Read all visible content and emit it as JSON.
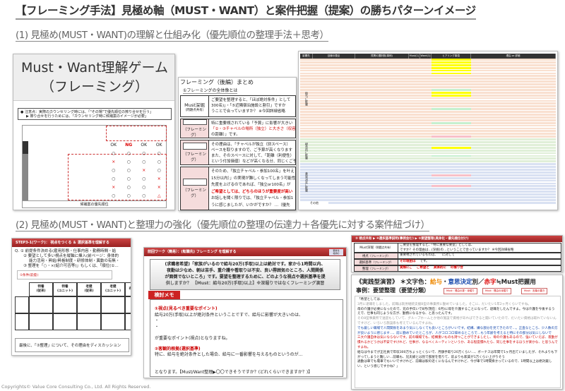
{
  "title": "【フレーミング手法】見極め軸（MUST・WANT）と案件把握（提案）の勝ちパターンイメージ",
  "section1": {
    "heading": "(1) 見極め(MUST・WANT)の理解と仕組み化（優先順位の整理手法＋思考）",
    "game_slide": {
      "title_line1": "Must・Want理解ゲーム",
      "title_line2": "（フレーミング）",
      "note_line1": "● 注意点：実際のカウンセリング時には、「\"その場\"で優先順位の擦り合せを行う」",
      "note_line2": "▶ 擦り合せを行うためには、「カウンセリング時に候補案のイメージが必要」",
      "marks": [
        "OK",
        "NG",
        "OK",
        "OK",
        "○",
        "×",
        "○",
        "×",
        "○",
        "△"
      ],
      "footer": "候補案の優先順位"
    },
    "framing_slide": {
      "title": "フレーミング（後編）まとめ",
      "subtitle": "①フレーミングの全体像とは",
      "rows": [
        {
          "label": "Must深堀",
          "sublabel": "（問題点共有）",
          "lines": [
            "ご要望を整理すると、「ほぼ絶対条件」として",
            "300名)」・「⑤近隣宿泊施設と割引」ですか",
            "うことで合っていますか？ ※今回詳細省略"
          ]
        },
        {
          "label": "",
          "sublabel": "（フレーミング）",
          "lines": [
            "特に重要視されている「予算」に影響が大きい",
            "「②・③チャペルの場所（独立）と大きさ（収容",
            "の距離）」です。"
          ]
        },
        {
          "label": "",
          "sublabel": "（フレーミング）",
          "lines": [
            "その理由は、「チャペルが独立（別スペース）",
            "ペースを取りますので、ご予算が高くなります",
            "また、そのスペースに対して、「距離（利便性）",
            "という付加価値）などが高くなる分、同じくご予"
          ]
        },
        {
          "label": "",
          "sublabel": "（フレーミング）",
          "lines": [
            "そのため、「独立チャペル・参加100名」を叶え",
            "15分以内）」の実現が難しくなってしまう可能性",
            "先度を上げるのであれば、「独立or100名」が",
            "ご希望としては、どちらのほうが重要度が高い",
            "お話しを聞く限りでは、「独立チャペル・参加1",
            "うに感じましたが、いかがですか？ …（優先"
          ]
        }
      ]
    },
    "sheet": {
      "headers": [
        "影響先",
        "目線の視点",
        "質問の選択肢(事例)",
        "Must(1)",
        "Want(1)",
        "ヒアリング事項",
        "理由 or 詳細"
      ],
      "groups": [
        "給与に影響",
        "総合的に影響",
        "意思決定に影響",
        "その他"
      ],
      "colors": {
        "orange": "#f9e0d0",
        "green": "#e0efd8",
        "blue": "#d9e1f2",
        "yellow": "#ffff00",
        "pink": "#f8c0c8",
        "mint": "#c6efce"
      }
    }
  },
  "section2": {
    "heading": "(2) 見極め(MUST・WANT)と整理力の強化（優先順位の整理の伝達力＋各優先に対する案件紐づけ）",
    "step_slide": {
      "bar": "STEP3-1(ワーク)： 視点をつくる ＆ 選択基準を理解する",
      "q_lines": [
        "Q. ① 前提条件決める(雇用形態・仕事内容・勤務時間・給",
        "② 要望として多い視点を縦軸に挿入(前ページ：身体的",
        "能力活用・昇給/昇格制度・研修体制・異動の有無・",
        "③ 整理を「○・×(紹介可否等)」もしくは、「順位(①…"
      ],
      "condition": "①条件(前提)：",
      "columns": [
        "特養\n(従来)",
        "特養\n(ユニット)",
        "老健\n(従来)",
        "老健\n(ユニット)",
        "有料"
      ],
      "footer": "最後に、「③整理」について、その理由をディスカッション"
    },
    "prev_slide": {
      "bar": "前回ワーク（簡易）：(転職先) フレーミング を理解する",
      "badge": "要素化\n格順の",
      "question": [
        "(求職者希望)「家族がいるので給与20万(手取)以上は絶対です。家から1時間以内、",
        "夜勤は少なめ、朝は苦手、重介護や看取りは不安、良い雰囲気のところ、人間関係",
        "が面倒でないところ」です。要望を整理するために、どのような視点や選択基準を提",
        "供しますか？ 【Must：給与20万(手取)以上】※深堀りではなくフレーミング演習"
      ],
      "memo_tag": "検討メモ",
      "memo": {
        "h1": "①視点(見るべき重要なポイント)",
        "l1": "給与20万(手取)以上が絶対条件ということですで、給与に影響が大きいのは、",
        "bullet1": "・",
        "bullet2": "・",
        "l2": "が重要なポイント(視点)となりますね。",
        "h2": "②客観的根拠(選択基準)",
        "l3": "特に、給与を絶対条件とした場合、給与に一番影響を与えるものというのが…",
        "l4": "となります。【Must/Want整理▶〇〇できそうですか？(どれくらいできますか？)】"
      }
    },
    "right_back": {
      "bar": "③ 視点共有 ▶ ④選択基準説明(事例含む) ▶ ⑤要望整理(具体化・優先順位付け)",
      "rows": [
        {
          "label": "Must深堀",
          "sub": "（問題点共有）",
          "text": [
            "ご要望を整理すると、「特に重要な要望」としては、",
            "ですか？その理由は…(深掘)の…ということで合っていますか？ ※今回詳細省略"
          ]
        },
        {
          "label": "視点",
          "sub": "（フレーミング）",
          "text": [
            "重要視されているものは、",
            "",
            "に対して"
          ]
        },
        {
          "label": "選択基準",
          "sub": "（フレーミング）",
          "text": [
            "その理由は",
            "",
            "",
            "です。"
          ]
        },
        {
          "label": "整理",
          "sub": "（フレーミング）",
          "text": [
            "実際にご",
            "",
            "ご希望と",
            "具体的に",
            "の擦り合"
          ]
        }
      ]
    },
    "right_front": {
      "title": "《実践型演習》 ＊文字色：給与・意思決定別／赤字≒Must把握用",
      "title_parts": [
        "《実践型演習》 ＊文字色：",
        "給与",
        "・",
        "意思決定",
        "別／",
        "赤字",
        "≒Must把握用"
      ],
      "subtitle": "事例：要望整理（要望分類）",
      "callouts": [
        "Must：理由の更・深堀り",
        "Must：理由の深掘り",
        "Must：言葉の置き"
      ],
      "body": [
        "「希望としては…",
        "3月に退職をしました。前職は就労継続支援B型の事業所に勤めていました。そこに、だいたい1年2ヶ月くらいですね。",
        "母の介護が必要になったので、兄の手伝いで8月(現在：6月)に母を介護することになって、退職をしたんですよ。今は介護を今後するうえで、仕事も同じような方が、勤務になるかな、と思ったんです。",
        "その8型事業所で送迎もしていて、グループホームとか他の施設で資格があればできると聞いていたので、だいたい資格は取れていないんですけど、いろいろ施設系も考えているんですよね。",
        "でも厳しい職場で人間関係をあまり気にしなくても良いところがいいです。結構、嫌な部分を見てきたので…。正直なところ、少人数の方が良いように感じます…、前に勤めていたところが、人がコロコロ辞めるところで…もう年齢を考えると特にその部分は気にしないで",
        "三大介護自体は気にならないです。前の職場でも、結構重いものも持つことができましたし、母の介護もあるので、強いていえば、夜勤が慣れるかどうかは不安ですけれど、仕事が、なるべくルーティンというか、ある程度慣れたら、同じ仕事をするほうが楽かな、と思うんですよね。",
        "給与は今までが正社員で年収300万ちょっとくらいで、月額手取り20万くらい…、ボーナスは年間で1ヶ月出ていましたが、それよりも下がってしまうと難しい…前職も、兄夫婦とは別で部屋を借りて、前よりも家賃が1万くらい上がりそう",
        "通勤は車でも電車でもいいですけれど、前職は駅の近くになるんですけれど、今が車で1時間掛かっているので、1時間以上は絶対厳しい、という感じですかね？」"
      ]
    }
  },
  "copyright": "Copyrights© Value Core Consulting Co., Ltd. All Rights Reserved."
}
